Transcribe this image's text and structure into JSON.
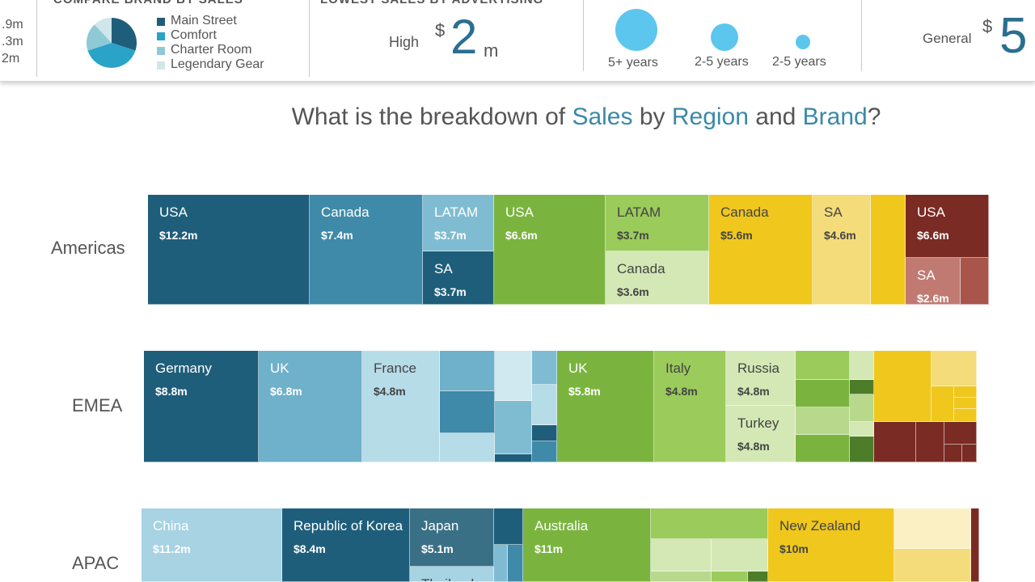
{
  "header": {
    "left_values": [
      ".9m",
      ".3m",
      "2m"
    ],
    "brand_panel": {
      "title": "COMPARE BRAND BY SALES",
      "legend": [
        {
          "label": "Main Street",
          "color": "#1f5e7a"
        },
        {
          "label": "Comfort",
          "color": "#2aa3c9"
        },
        {
          "label": "Charter Room",
          "color": "#8ec9d6"
        },
        {
          "label": "Legendary Gear",
          "color": "#cfe6ec"
        }
      ],
      "pie": [
        {
          "label": "Main Street",
          "value": 30,
          "color": "#1f5e7a"
        },
        {
          "label": "Comfort",
          "value": 40,
          "color": "#2aa3c9"
        },
        {
          "label": "Charter Room",
          "value": 18,
          "color": "#8ec9d6"
        },
        {
          "label": "Legendary Gear",
          "value": 12,
          "color": "#cfe6ec"
        }
      ]
    },
    "advertising_panel": {
      "title": "LOWEST SALES BY ADVERTISING",
      "label": "High",
      "currency": "$",
      "value": "2",
      "unit": "m"
    },
    "tenure_panel": {
      "bubbles": [
        {
          "label": "5+ years",
          "size": 52
        },
        {
          "label": "2-5 years",
          "size": 34
        },
        {
          "label": "2-5 years",
          "size": 18
        }
      ]
    },
    "general_panel": {
      "label": "General",
      "currency": "$",
      "value": "5"
    }
  },
  "question": {
    "p1": "What is the breakdown of ",
    "k1": "Sales",
    "p2": " by ",
    "k2": "Region",
    "p3": " and ",
    "k3": "Brand",
    "p4": "?"
  },
  "chart_data": {
    "type": "treemap",
    "title": "What is the breakdown of Sales by Region and Brand?",
    "unit": "$m",
    "regions": [
      {
        "name": "Americas",
        "cells": [
          {
            "label": "USA",
            "value": "$12.2m",
            "sales": 12.2,
            "color": "#1f5e7a"
          },
          {
            "label": "Canada",
            "value": "$7.4m",
            "sales": 7.4,
            "color": "#3f8aa8"
          },
          {
            "label": "LATAM",
            "value": "$3.7m",
            "sales": 3.7,
            "color": "#7fbcd2"
          },
          {
            "label": "SA",
            "value": "$3.7m",
            "sales": 3.7,
            "color": "#1f5e7a"
          },
          {
            "label": "USA",
            "value": "$6.6m",
            "sales": 6.6,
            "color": "#7ab43f"
          },
          {
            "label": "LATAM",
            "value": "$3.7m",
            "sales": 3.7,
            "color": "#9acb5b"
          },
          {
            "label": "Canada",
            "value": "$3.6m",
            "sales": 3.6,
            "color": "#d4e8b5"
          },
          {
            "label": "Canada",
            "value": "$5.6m",
            "sales": 5.6,
            "color": "#f0c71c"
          },
          {
            "label": "SA",
            "value": "$4.6m",
            "sales": 4.6,
            "color": "#f5dc7a"
          },
          {
            "label": "",
            "value": "",
            "color": "#f0c71c"
          },
          {
            "label": "USA",
            "value": "$6.6m",
            "sales": 6.6,
            "color": "#7a2b23"
          },
          {
            "label": "SA",
            "value": "$2.6m",
            "sales": 2.6,
            "color": "#c07a71"
          },
          {
            "label": "",
            "value": "",
            "color": "#a9554c"
          }
        ]
      },
      {
        "name": "EMEA",
        "cells": [
          {
            "label": "Germany",
            "value": "$8.8m",
            "sales": 8.8,
            "color": "#1f5e7a"
          },
          {
            "label": "UK",
            "value": "$6.8m",
            "sales": 6.8,
            "color": "#6fb0cb"
          },
          {
            "label": "France",
            "value": "$4.8m",
            "sales": 4.8,
            "color": "#b6dce8"
          },
          {
            "label": "UK",
            "value": "$5.8m",
            "sales": 5.8,
            "color": "#7ab43f"
          },
          {
            "label": "Italy",
            "value": "$4.8m",
            "sales": 4.8,
            "color": "#9acb5b"
          },
          {
            "label": "Russia",
            "value": "$4.8m",
            "sales": 4.8,
            "color": "#d4e8b5"
          },
          {
            "label": "Turkey",
            "value": "$4.8m",
            "sales": 4.8,
            "color": "#d4e8b5"
          }
        ]
      },
      {
        "name": "APAC",
        "cells": [
          {
            "label": "China",
            "value": "$11.2m",
            "sales": 11.2,
            "color": "#a7d3e3"
          },
          {
            "label": "Republic of Korea",
            "value": "$8.4m",
            "sales": 8.4,
            "color": "#1f5e7a"
          },
          {
            "label": "Japan",
            "value": "$5.1m",
            "sales": 5.1,
            "color": "#3a7086"
          },
          {
            "label": "Thailand",
            "value": "",
            "color": "#a7d3e3"
          },
          {
            "label": "Australia",
            "value": "$11m",
            "sales": 11,
            "color": "#7ab43f"
          },
          {
            "label": "New Zealand",
            "value": "$10m",
            "sales": 10,
            "color": "#f0c71c"
          }
        ]
      }
    ]
  }
}
